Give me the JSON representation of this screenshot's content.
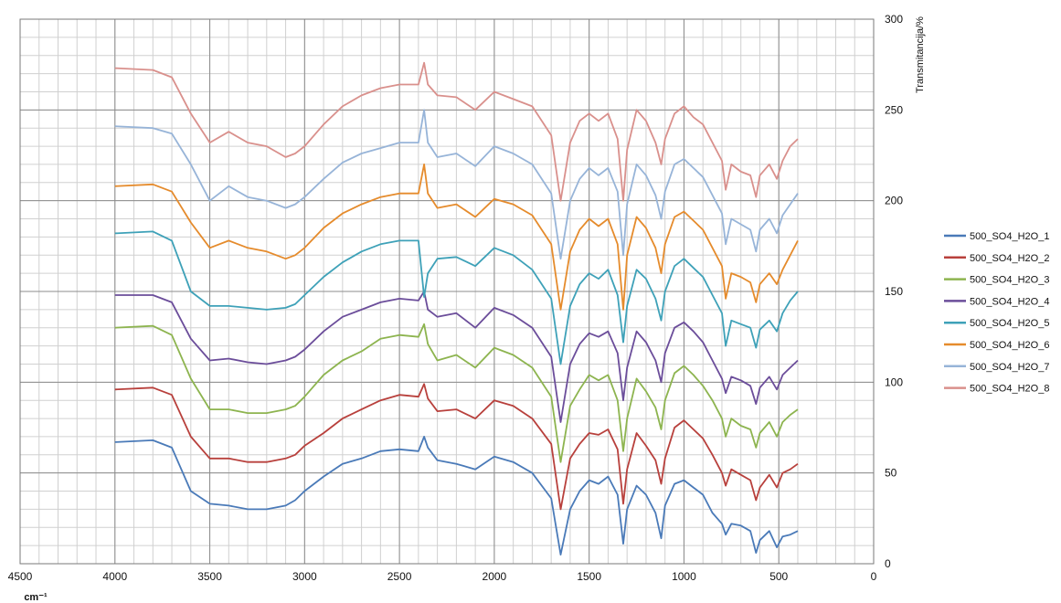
{
  "chart_data": {
    "type": "line",
    "title": "",
    "xlabel": "cm⁻¹",
    "ylabel": "Transmitancija/%",
    "xlim": [
      4500,
      0
    ],
    "ylim": [
      0,
      300
    ],
    "x_reversed": true,
    "y_axis_side": "right",
    "grid": true,
    "legend_position": "right",
    "xticks": [
      "4500",
      "4000",
      "3500",
      "3000",
      "2500",
      "2000",
      "1500",
      "1000",
      "500",
      "0"
    ],
    "xtick_values": [
      4500,
      4000,
      3500,
      3000,
      2500,
      2000,
      1500,
      1000,
      500,
      0
    ],
    "yticks": [
      "0",
      "50",
      "100",
      "150",
      "200",
      "250",
      "300"
    ],
    "ytick_values": [
      0,
      50,
      100,
      150,
      200,
      250,
      300
    ],
    "wavenumbers": [
      4000,
      3800,
      3700,
      3600,
      3500,
      3400,
      3300,
      3200,
      3100,
      3050,
      3000,
      2900,
      2800,
      2700,
      2600,
      2500,
      2400,
      2370,
      2350,
      2300,
      2200,
      2100,
      2000,
      1900,
      1800,
      1700,
      1650,
      1600,
      1550,
      1500,
      1450,
      1400,
      1350,
      1320,
      1300,
      1250,
      1200,
      1150,
      1120,
      1100,
      1050,
      1000,
      950,
      900,
      850,
      800,
      780,
      750,
      700,
      650,
      620,
      600,
      550,
      510,
      480,
      440,
      400
    ],
    "series": [
      {
        "name": "500_SO4_H2O_1",
        "color": "#4a7ab8",
        "values": [
          67,
          68,
          64,
          40,
          33,
          32,
          30,
          30,
          32,
          35,
          40,
          48,
          55,
          58,
          62,
          63,
          62,
          70,
          64,
          57,
          55,
          52,
          59,
          56,
          50,
          36,
          5,
          30,
          40,
          46,
          44,
          48,
          38,
          11,
          30,
          43,
          38,
          28,
          14,
          32,
          44,
          46,
          42,
          38,
          28,
          22,
          16,
          22,
          21,
          18,
          6,
          13,
          18,
          9,
          15,
          16,
          18
        ]
      },
      {
        "name": "500_SO4_H2O_2",
        "color": "#b8403c",
        "values": [
          96,
          97,
          93,
          70,
          58,
          58,
          56,
          56,
          58,
          60,
          65,
          72,
          80,
          85,
          90,
          93,
          92,
          99,
          91,
          84,
          85,
          80,
          90,
          87,
          80,
          66,
          30,
          58,
          66,
          72,
          71,
          74,
          63,
          33,
          52,
          72,
          65,
          57,
          44,
          58,
          75,
          79,
          74,
          69,
          60,
          50,
          43,
          52,
          49,
          46,
          35,
          42,
          49,
          42,
          50,
          52,
          55
        ]
      },
      {
        "name": "500_SO4_H2O_3",
        "color": "#8db44f",
        "values": [
          130,
          131,
          126,
          102,
          85,
          85,
          83,
          83,
          85,
          87,
          92,
          104,
          112,
          117,
          124,
          126,
          125,
          132,
          121,
          112,
          115,
          108,
          119,
          115,
          108,
          92,
          56,
          87,
          96,
          104,
          101,
          104,
          90,
          62,
          80,
          102,
          95,
          86,
          74,
          90,
          105,
          109,
          104,
          98,
          90,
          80,
          70,
          80,
          76,
          74,
          64,
          72,
          78,
          70,
          78,
          82,
          85
        ]
      },
      {
        "name": "500_SO4_H2O_4",
        "color": "#6b4d9a",
        "values": [
          148,
          148,
          144,
          124,
          112,
          113,
          111,
          110,
          112,
          114,
          118,
          128,
          136,
          140,
          144,
          146,
          145,
          150,
          140,
          136,
          138,
          130,
          141,
          137,
          130,
          114,
          78,
          110,
          121,
          127,
          125,
          128,
          116,
          90,
          108,
          128,
          122,
          112,
          100,
          116,
          130,
          133,
          128,
          122,
          112,
          102,
          94,
          103,
          101,
          98,
          88,
          97,
          103,
          96,
          104,
          108,
          112
        ]
      },
      {
        "name": "500_SO4_H2O_5",
        "color": "#3ea1b8",
        "values": [
          182,
          183,
          178,
          150,
          142,
          142,
          141,
          140,
          141,
          143,
          148,
          158,
          166,
          172,
          176,
          178,
          178,
          147,
          160,
          168,
          169,
          164,
          174,
          170,
          162,
          146,
          110,
          142,
          154,
          160,
          157,
          162,
          148,
          122,
          142,
          162,
          157,
          146,
          134,
          150,
          164,
          168,
          163,
          158,
          148,
          138,
          120,
          134,
          132,
          130,
          119,
          129,
          134,
          128,
          138,
          145,
          150
        ]
      },
      {
        "name": "500_SO4_H2O_6",
        "color": "#e58b2c",
        "values": [
          208,
          209,
          205,
          188,
          174,
          178,
          174,
          172,
          168,
          170,
          174,
          185,
          193,
          198,
          202,
          204,
          204,
          220,
          204,
          196,
          198,
          191,
          201,
          198,
          192,
          176,
          140,
          172,
          184,
          190,
          186,
          190,
          176,
          140,
          170,
          191,
          185,
          174,
          160,
          176,
          191,
          194,
          189,
          184,
          174,
          164,
          146,
          160,
          158,
          155,
          144,
          154,
          160,
          154,
          162,
          170,
          178
        ]
      },
      {
        "name": "500_SO4_H2O_7",
        "color": "#97b4d8",
        "values": [
          241,
          240,
          237,
          220,
          200,
          208,
          202,
          200,
          196,
          198,
          202,
          212,
          221,
          226,
          229,
          232,
          232,
          250,
          232,
          224,
          226,
          219,
          230,
          226,
          220,
          204,
          168,
          200,
          212,
          218,
          214,
          218,
          205,
          170,
          198,
          220,
          214,
          203,
          190,
          205,
          220,
          223,
          218,
          213,
          203,
          193,
          176,
          190,
          187,
          184,
          172,
          184,
          190,
          182,
          192,
          198,
          204
        ]
      },
      {
        "name": "500_SO4_H2O_8",
        "color": "#d9908c",
        "values": [
          273,
          272,
          268,
          248,
          232,
          238,
          232,
          230,
          224,
          226,
          230,
          242,
          252,
          258,
          262,
          264,
          264,
          276,
          264,
          258,
          257,
          250,
          260,
          256,
          252,
          236,
          200,
          232,
          244,
          248,
          244,
          248,
          234,
          200,
          228,
          250,
          244,
          232,
          220,
          234,
          248,
          252,
          246,
          242,
          232,
          222,
          206,
          220,
          216,
          214,
          202,
          214,
          220,
          212,
          222,
          230,
          234
        ]
      }
    ]
  }
}
